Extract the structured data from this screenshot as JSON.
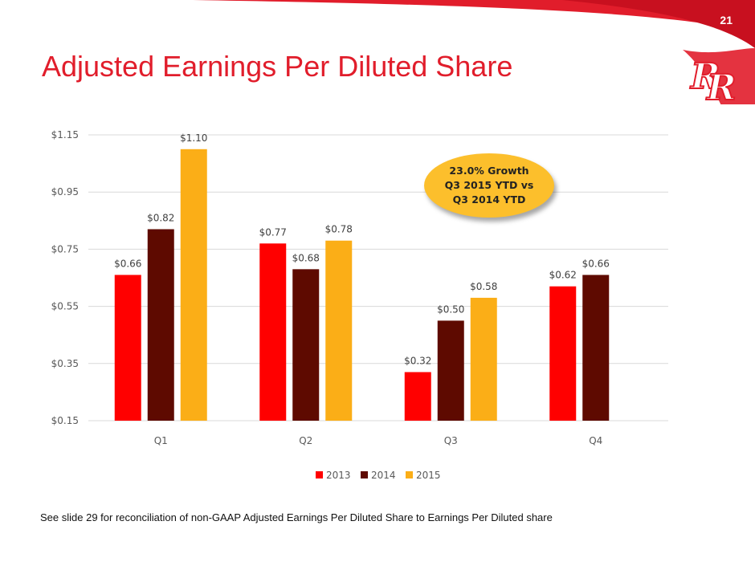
{
  "slide": {
    "number": "21",
    "title": "Adjusted Earnings Per Diluted Share",
    "footnote": "See slide 29 for reconciliation of non-GAAP Adjusted Earnings Per Diluted Share to Earnings Per Diluted share"
  },
  "callout": {
    "lines": [
      "23.0% Growth",
      "Q3 2015 YTD vs",
      "Q3 2014 YTD"
    ]
  },
  "colors": {
    "brand_red": "#e11d2b",
    "series_2013": "#ff0000",
    "series_2014": "#5e0a00",
    "series_2015": "#fbae17",
    "callout_fill": "#fcbf2c",
    "gridline": "#d9d9d9"
  },
  "chart_data": {
    "type": "bar",
    "categories": [
      "Q1",
      "Q2",
      "Q3",
      "Q4"
    ],
    "series": [
      {
        "name": "2013",
        "values": [
          0.66,
          0.77,
          0.32,
          0.62
        ],
        "labels": [
          "$0.66",
          "$0.77",
          "$0.32",
          "$0.62"
        ]
      },
      {
        "name": "2014",
        "values": [
          0.82,
          0.68,
          0.5,
          0.66
        ],
        "labels": [
          "$0.82",
          "$0.68",
          "$0.50",
          "$0.66"
        ]
      },
      {
        "name": "2015",
        "values": [
          1.1,
          0.78,
          0.58,
          null
        ],
        "labels": [
          "$1.10",
          "$0.78",
          "$0.58",
          null
        ]
      }
    ],
    "ylim": [
      0.15,
      1.15
    ],
    "yticks": [
      0.15,
      0.35,
      0.55,
      0.75,
      0.95,
      1.15
    ],
    "ytick_labels": [
      "$0.15",
      "$0.35",
      "$0.55",
      "$0.75",
      "$0.95",
      "$1.15"
    ],
    "grid": true,
    "legend": "bottom"
  }
}
